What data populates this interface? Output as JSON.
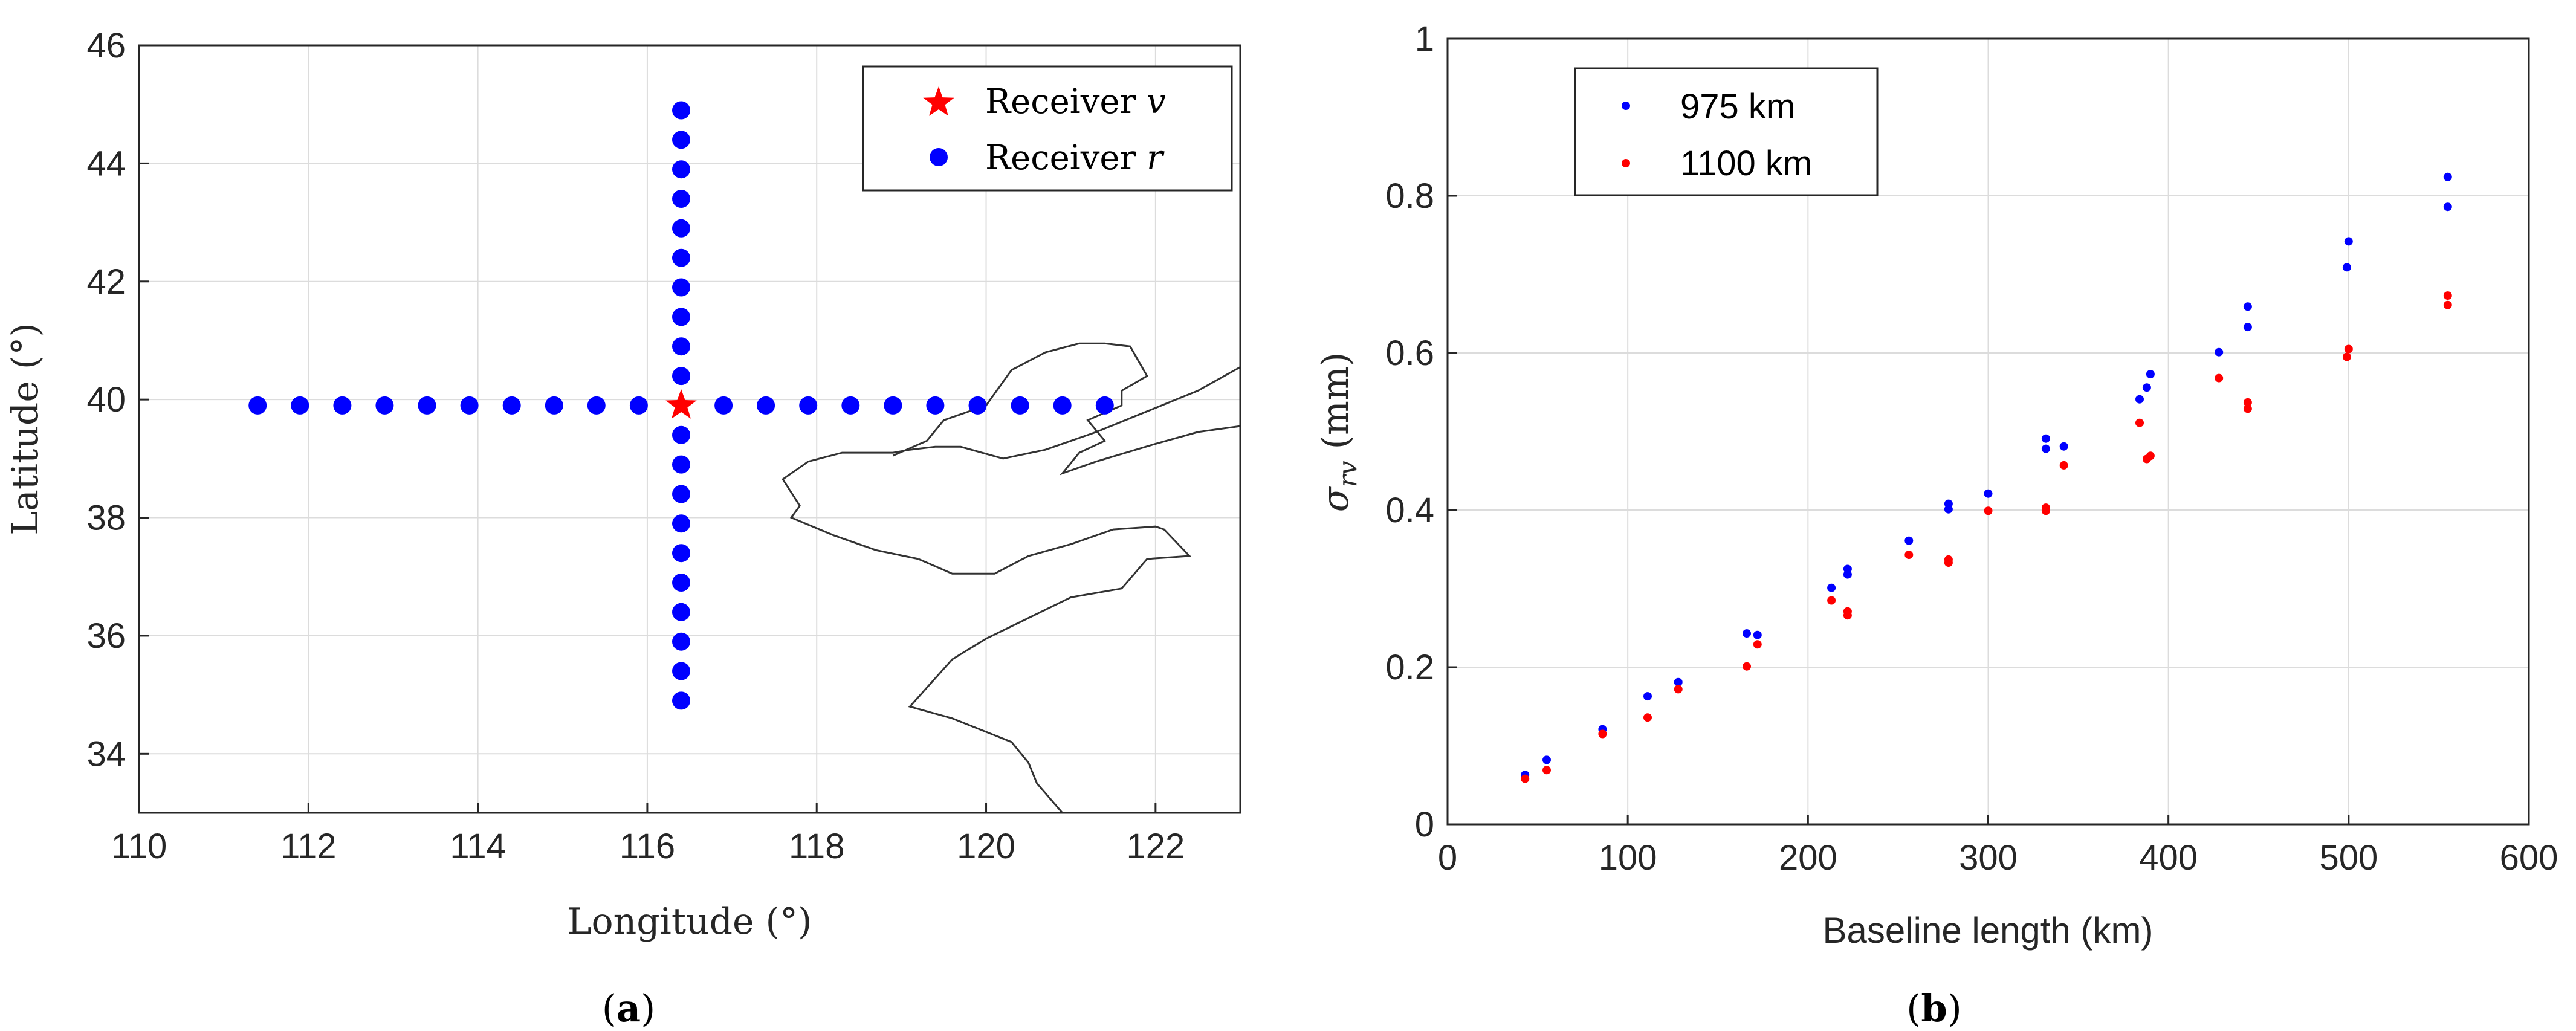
{
  "chart_data": [
    {
      "id": "a",
      "type": "scatter",
      "caption_open": "(",
      "caption_letter": "a",
      "caption_close": ")",
      "xlabel": "Longitude (°)",
      "ylabel": "Latitude (°)",
      "xlim": [
        110,
        123
      ],
      "ylim": [
        33,
        46
      ],
      "xticks": [
        110,
        112,
        114,
        116,
        118,
        120,
        122
      ],
      "yticks": [
        34,
        36,
        38,
        40,
        42,
        44,
        46
      ],
      "grid": true,
      "legend_position": "top-right",
      "colors": {
        "receiver_v": "#ff0000",
        "receiver_r": "#0000ff",
        "coastline": "#333333"
      },
      "series": [
        {
          "name": "Receiver v",
          "label_main": "Receiver ",
          "label_var": "v",
          "marker": "star",
          "x": [
            116.4
          ],
          "y": [
            39.9
          ]
        },
        {
          "name": "Receiver r",
          "label_main": "Receiver ",
          "label_var": "r",
          "marker": "circle",
          "x": [
            111.4,
            111.9,
            112.4,
            112.9,
            113.4,
            113.9,
            114.4,
            114.9,
            115.4,
            115.9,
            116.9,
            117.4,
            117.9,
            118.4,
            118.9,
            119.4,
            119.9,
            120.4,
            120.9,
            121.4,
            116.4,
            116.4,
            116.4,
            116.4,
            116.4,
            116.4,
            116.4,
            116.4,
            116.4,
            116.4,
            116.4,
            116.4,
            116.4,
            116.4,
            116.4,
            116.4,
            116.4,
            116.4,
            116.4,
            116.4
          ],
          "y": [
            39.9,
            39.9,
            39.9,
            39.9,
            39.9,
            39.9,
            39.9,
            39.9,
            39.9,
            39.9,
            39.9,
            39.9,
            39.9,
            39.9,
            39.9,
            39.9,
            39.9,
            39.9,
            39.9,
            39.9,
            44.9,
            44.4,
            43.9,
            43.4,
            42.9,
            42.4,
            41.9,
            41.4,
            40.9,
            40.4,
            39.4,
            38.9,
            38.4,
            37.9,
            37.4,
            36.9,
            36.4,
            35.9,
            35.4,
            34.9
          ]
        }
      ],
      "coastlines": [
        {
          "x": [
            118.9,
            119.3,
            119.5,
            120.0,
            120.3,
            120.7,
            121.1,
            121.4,
            121.7,
            121.9,
            121.6,
            121.6,
            121.2,
            121.4,
            121.1,
            120.9,
            121.3,
            122.0,
            122.5,
            123.0
          ],
          "y": [
            39.05,
            39.3,
            39.65,
            39.9,
            40.5,
            40.8,
            40.95,
            40.95,
            40.9,
            40.4,
            40.15,
            39.9,
            39.65,
            39.3,
            39.1,
            38.75,
            38.95,
            39.25,
            39.45,
            39.55
          ]
        },
        {
          "x": [
            123.0,
            122.5,
            121.9,
            121.3,
            120.7,
            120.2,
            119.7,
            119.4,
            119.1,
            118.9,
            118.3,
            117.9,
            117.6,
            117.8,
            117.7,
            118.2,
            118.7,
            119.2
          ],
          "y": [
            40.55,
            40.15,
            39.8,
            39.45,
            39.15,
            39.0,
            39.2,
            39.2,
            39.15,
            39.1,
            39.1,
            38.95,
            38.65,
            38.2,
            38.0,
            37.7,
            37.45,
            37.3
          ]
        },
        {
          "x": [
            119.2,
            119.6,
            120.1,
            120.5,
            121.0,
            121.5,
            122.0,
            122.1,
            122.4,
            121.9,
            121.6,
            121.0,
            120.5,
            120.0,
            119.6,
            119.1,
            119.6,
            120.3,
            120.5,
            120.6,
            120.9
          ],
          "y": [
            37.3,
            37.05,
            37.05,
            37.35,
            37.55,
            37.8,
            37.85,
            37.8,
            37.35,
            37.3,
            36.8,
            36.65,
            36.3,
            35.95,
            35.6,
            34.8,
            34.6,
            34.2,
            33.85,
            33.5,
            33.0
          ]
        }
      ]
    },
    {
      "id": "b",
      "type": "scatter",
      "caption_open": "(",
      "caption_letter": "b",
      "caption_close": ")",
      "xlabel": "Baseline length (km)",
      "ylabel_symbol": "σ",
      "ylabel_sub": "rv",
      "ylabel_unit": " (mm)",
      "xlim": [
        0,
        600
      ],
      "ylim": [
        0,
        1
      ],
      "xticks": [
        0,
        100,
        200,
        300,
        400,
        500,
        600
      ],
      "yticks": [
        0,
        0.2,
        0.4,
        0.6,
        0.8,
        1
      ],
      "ytick_labels": [
        "0",
        "0.2",
        "0.4",
        "0.6",
        "0.8",
        "1"
      ],
      "grid": true,
      "legend_position": "top-left",
      "series": [
        {
          "name": "975 km",
          "color": "#0000ff",
          "x": [
            43,
            55,
            86,
            111,
            128,
            166,
            172,
            213,
            222,
            222,
            256,
            278,
            278,
            300,
            332,
            332,
            342,
            384,
            388,
            390,
            428,
            444,
            444,
            499,
            500,
            555,
            555
          ],
          "y": [
            0.063,
            0.082,
            0.121,
            0.163,
            0.181,
            0.243,
            0.241,
            0.301,
            0.318,
            0.325,
            0.361,
            0.401,
            0.408,
            0.421,
            0.478,
            0.491,
            0.481,
            0.541,
            0.556,
            0.573,
            0.601,
            0.633,
            0.659,
            0.709,
            0.742,
            0.786,
            0.824
          ]
        },
        {
          "name": "1100 km",
          "color": "#ff0000",
          "x": [
            43,
            55,
            86,
            111,
            128,
            166,
            172,
            213,
            222,
            222,
            256,
            278,
            278,
            300,
            332,
            332,
            342,
            384,
            388,
            390,
            428,
            444,
            444,
            499,
            500,
            555,
            555
          ],
          "y": [
            0.058,
            0.069,
            0.115,
            0.136,
            0.172,
            0.201,
            0.229,
            0.285,
            0.266,
            0.271,
            0.343,
            0.333,
            0.337,
            0.399,
            0.399,
            0.403,
            0.457,
            0.511,
            0.465,
            0.469,
            0.568,
            0.529,
            0.537,
            0.595,
            0.605,
            0.661,
            0.673
          ]
        }
      ]
    }
  ]
}
